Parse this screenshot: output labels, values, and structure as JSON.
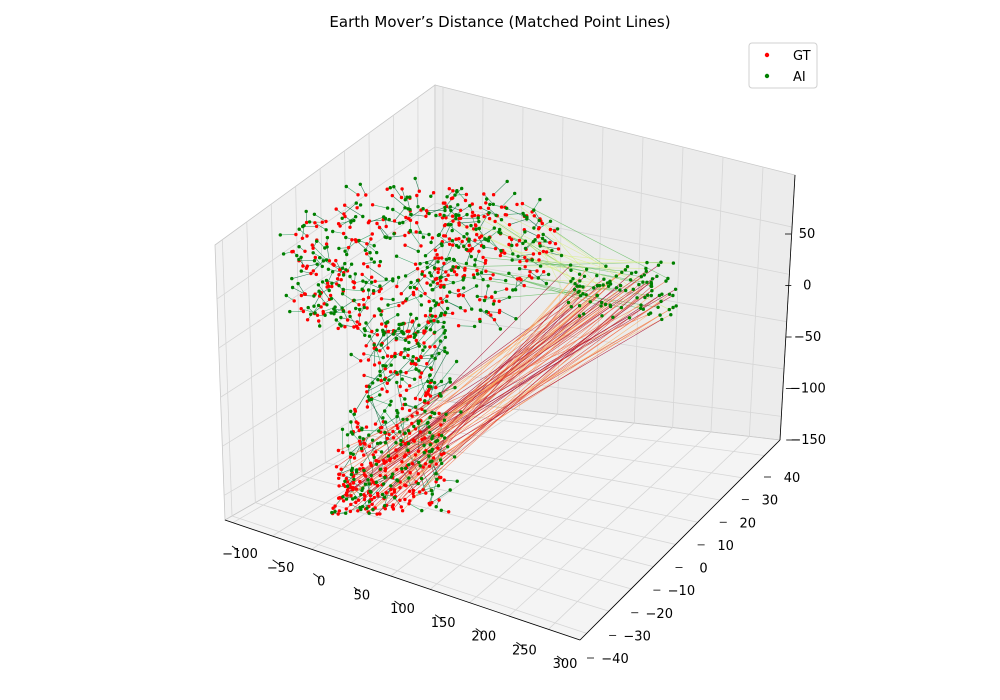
{
  "chart_data": {
    "type": "scatter",
    "title": "Earth Mover’s Distance (Matched Point Lines)",
    "projection": "3d",
    "grid": true,
    "legend_position": "top-right",
    "x_ticks": [
      "−100",
      "−50",
      "0",
      "50",
      "100",
      "150",
      "200",
      "250",
      "300"
    ],
    "y_ticks": [
      "−40",
      "−30",
      "−20",
      "−10",
      "0",
      "10",
      "20",
      "30",
      "40"
    ],
    "z_ticks": [
      "50",
      "0",
      "−50",
      "−100",
      "−150"
    ],
    "series": [
      {
        "name": "GT",
        "color": "#ff0000"
      },
      {
        "name": "AI",
        "color": "#008000"
      }
    ],
    "match_line_colors": [
      "#006837",
      "#1a9850",
      "#66bd63",
      "#d9ef8b",
      "#fdae61",
      "#f46d43",
      "#d73027",
      "#a50026"
    ]
  }
}
